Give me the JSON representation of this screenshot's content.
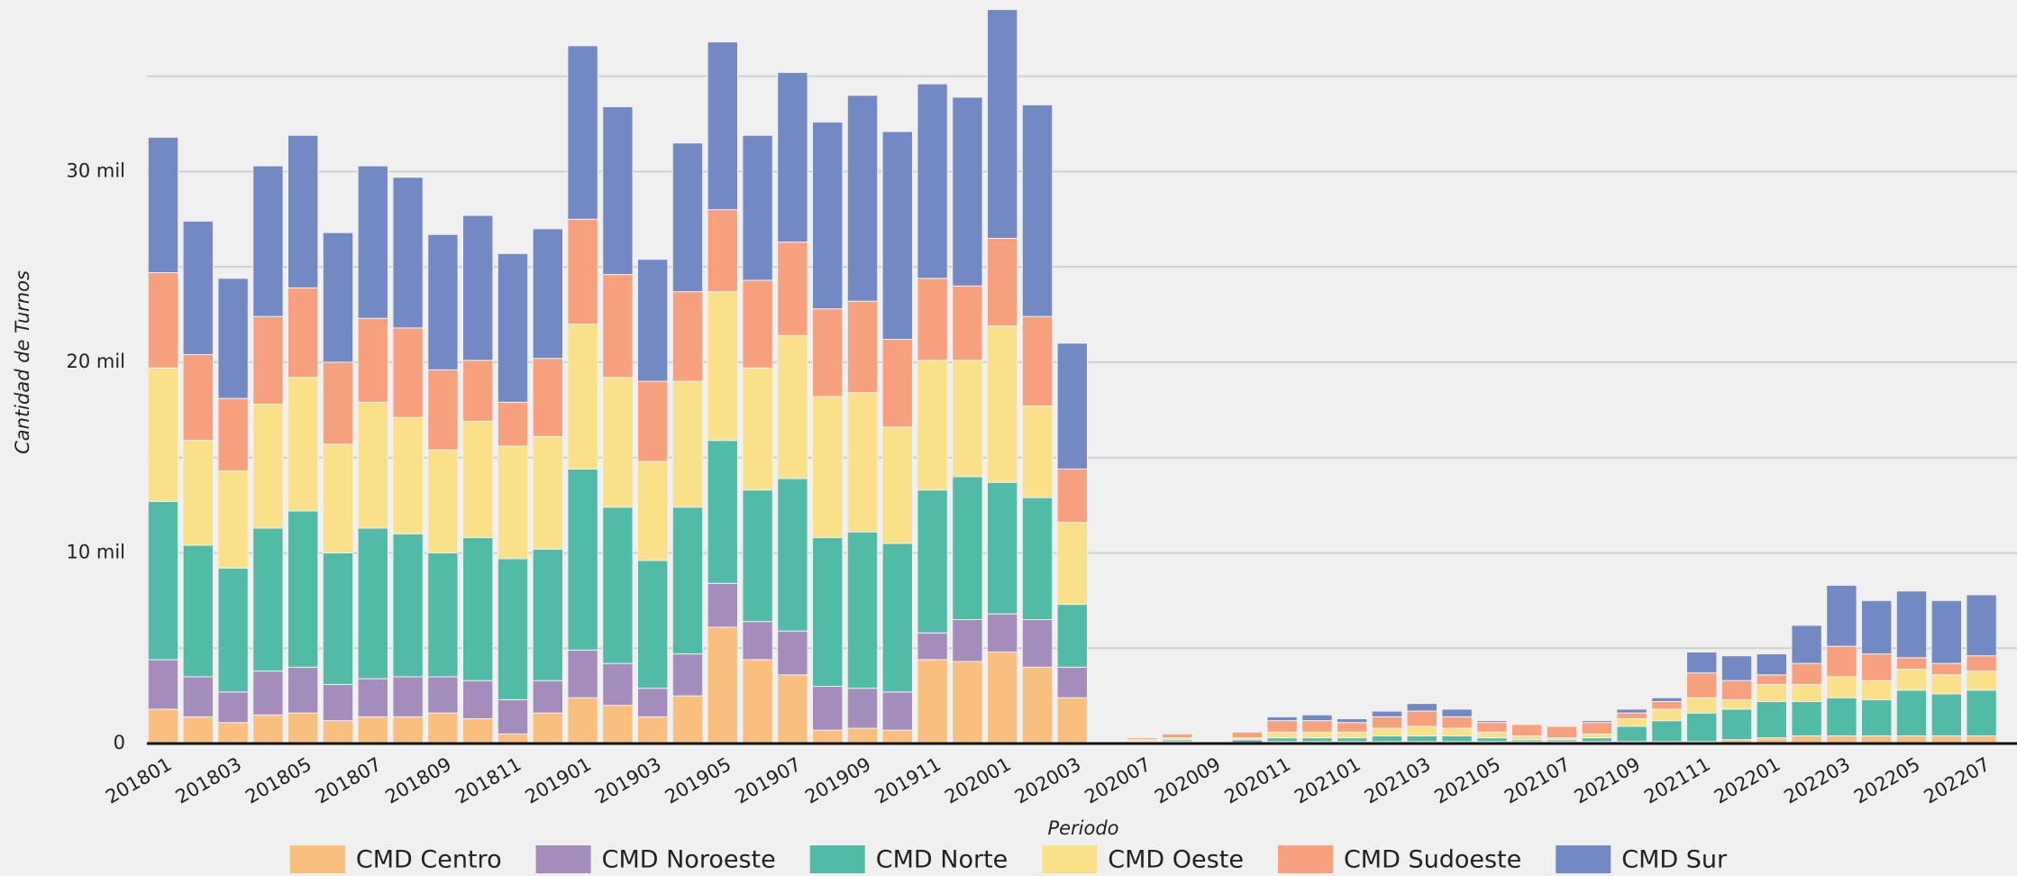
{
  "chart_data": {
    "type": "stacked_bar",
    "xlabel": "Periodo",
    "ylabel": "Cantidad de Turnos",
    "categories": [
      "201801",
      null,
      "201803",
      null,
      "201805",
      null,
      "201807",
      null,
      "201809",
      null,
      "201811",
      null,
      "201901",
      null,
      "201903",
      null,
      "201905",
      null,
      "201907",
      null,
      "201909",
      null,
      "201911",
      null,
      "202001",
      null,
      "202003",
      null,
      "202007",
      null,
      "202009",
      null,
      "202011",
      null,
      "202101",
      null,
      "202103",
      null,
      "202105",
      null,
      "202107",
      null,
      "202109",
      null,
      "202111",
      null,
      "202201",
      null,
      "202203",
      null,
      "202205",
      null,
      "202207"
    ],
    "series": [
      {
        "name": "CMD Centro",
        "color": "#f8bf7e",
        "values": [
          1800,
          1400,
          1100,
          1500,
          1600,
          1200,
          1400,
          1400,
          1600,
          1300,
          500,
          1600,
          2400,
          2000,
          1400,
          2500,
          6100,
          4400,
          3600,
          700,
          800,
          700,
          4400,
          4300,
          4800,
          4000,
          2400,
          0,
          100,
          100,
          0,
          50,
          100,
          100,
          100,
          100,
          100,
          100,
          100,
          100,
          100,
          100,
          100,
          100,
          100,
          200,
          300,
          400,
          400,
          400,
          400,
          400,
          400
        ]
      },
      {
        "name": "CMD Noroeste",
        "color": "#a48cbd",
        "values": [
          2600,
          2100,
          1600,
          2300,
          2400,
          1900,
          2000,
          2100,
          1900,
          2000,
          1800,
          1700,
          2500,
          2200,
          1500,
          2200,
          2300,
          2000,
          2300,
          2300,
          2100,
          2000,
          1400,
          2200,
          2000,
          2500,
          1600,
          0,
          0,
          0,
          0,
          0,
          0,
          0,
          0,
          0,
          0,
          0,
          0,
          0,
          0,
          0,
          0,
          0,
          0,
          0,
          0,
          0,
          0,
          0,
          0,
          0,
          0
        ]
      },
      {
        "name": "CMD Norte",
        "color": "#52bba8",
        "values": [
          8300,
          6900,
          6500,
          7500,
          8200,
          6900,
          7900,
          7500,
          6500,
          7500,
          7400,
          6900,
          9500,
          8200,
          6700,
          7700,
          7500,
          6900,
          8000,
          7800,
          8200,
          7800,
          7500,
          7500,
          6900,
          6400,
          3300,
          0,
          0,
          100,
          50,
          150,
          200,
          200,
          200,
          300,
          300,
          300,
          200,
          100,
          100,
          200,
          800,
          1100,
          1500,
          1600,
          1900,
          1800,
          2000,
          1900,
          2400,
          2200,
          2400
        ]
      },
      {
        "name": "CMD Oeste",
        "color": "#fbe08a",
        "values": [
          7000,
          5500,
          5100,
          6500,
          7000,
          5700,
          6600,
          6100,
          5400,
          6100,
          5900,
          5900,
          7600,
          6800,
          5200,
          6600,
          7800,
          6400,
          7500,
          7400,
          7300,
          6100,
          6800,
          6100,
          8200,
          4800,
          4300,
          0,
          100,
          100,
          50,
          100,
          300,
          300,
          300,
          400,
          500,
          400,
          300,
          200,
          100,
          200,
          400,
          600,
          800,
          500,
          900,
          900,
          1100,
          1000,
          1100,
          1000,
          1000
        ]
      },
      {
        "name": "CMD Sudoeste",
        "color": "#f6a07e",
        "values": [
          5000,
          4500,
          3800,
          4600,
          4700,
          4300,
          4400,
          4700,
          4200,
          3200,
          2300,
          4100,
          5500,
          5400,
          4200,
          4700,
          4300,
          4600,
          4900,
          4600,
          4800,
          4600,
          4300,
          3900,
          4600,
          4700,
          2800,
          0,
          100,
          200,
          0,
          300,
          600,
          600,
          500,
          600,
          800,
          600,
          500,
          600,
          600,
          600,
          300,
          400,
          1300,
          1000,
          500,
          1100,
          1600,
          1400,
          600,
          600,
          800
        ]
      },
      {
        "name": "CMD Sur",
        "color": "#7389c4",
        "values": [
          7100,
          7000,
          6300,
          7900,
          8000,
          6800,
          8000,
          7900,
          7100,
          7600,
          7800,
          6800,
          9100,
          8800,
          6400,
          7800,
          8800,
          7600,
          8900,
          9800,
          10800,
          10900,
          10200,
          9900,
          12000,
          11100,
          6600,
          0,
          0,
          0,
          0,
          0,
          200,
          300,
          200,
          300,
          400,
          400,
          100,
          0,
          0,
          100,
          200,
          200,
          1100,
          1300,
          1100,
          2000,
          3200,
          2800,
          3500,
          3300,
          3200
        ]
      }
    ],
    "ylim": [
      0,
      39000
    ],
    "yticks": [
      0,
      {
        "value": 10000,
        "label": "10 mil"
      },
      {
        "value": 20000,
        "label": "20 mil"
      },
      {
        "value": 30000,
        "label": "30 mil"
      }
    ],
    "minor_yticks": [
      5000,
      15000,
      25000,
      35000
    ],
    "grid": true,
    "legend": "bottom"
  }
}
